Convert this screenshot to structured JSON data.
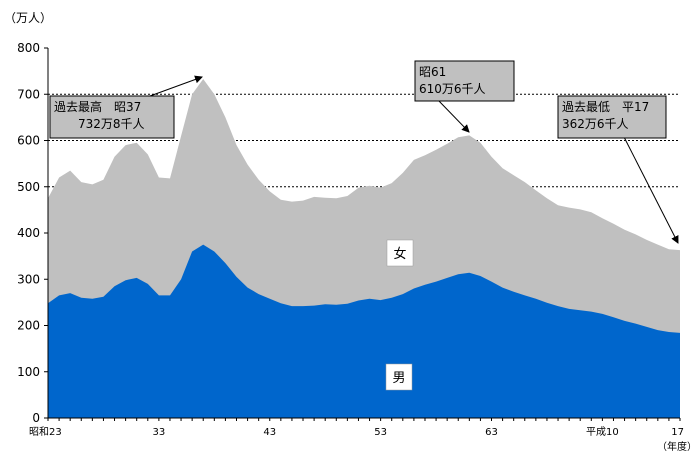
{
  "chart_data": {
    "type": "area",
    "stacked": true,
    "y_unit": "（万人）",
    "x_unit": "（年度）",
    "ylim": [
      0,
      800
    ],
    "yticks": [
      0,
      100,
      200,
      300,
      400,
      500,
      600,
      700,
      800
    ],
    "gridlines_y": [
      500,
      600,
      700
    ],
    "x_tick_labels": [
      {
        "label": "昭和23",
        "index": 0
      },
      {
        "label": "33",
        "index": 10
      },
      {
        "label": "43",
        "index": 20
      },
      {
        "label": "53",
        "index": 30
      },
      {
        "label": "63",
        "index": 40
      },
      {
        "label": "平成10",
        "index": 50
      },
      {
        "label": "17",
        "index": 57
      }
    ],
    "total": [
      475,
      520,
      535,
      510,
      505,
      515,
      565,
      590,
      595,
      570,
      520,
      518,
      610,
      700,
      733,
      700,
      650,
      590,
      548,
      515,
      490,
      472,
      468,
      470,
      478,
      476,
      475,
      480,
      498,
      502,
      498,
      508,
      530,
      558,
      568,
      580,
      593,
      607,
      611,
      595,
      565,
      540,
      525,
      510,
      492,
      475,
      460,
      455,
      451,
      445,
      432,
      420,
      407,
      397,
      385,
      375,
      365,
      363
    ],
    "series": [
      {
        "name": "男",
        "color": "#0066cc",
        "values": [
          248,
          265,
          270,
          260,
          258,
          262,
          285,
          298,
          303,
          290,
          265,
          265,
          300,
          360,
          375,
          360,
          335,
          305,
          282,
          268,
          258,
          248,
          242,
          242,
          243,
          246,
          245,
          247,
          254,
          258,
          255,
          260,
          268,
          280,
          288,
          295,
          303,
          311,
          314,
          307,
          295,
          282,
          273,
          265,
          258,
          249,
          242,
          236,
          233,
          230,
          225,
          218,
          210,
          204,
          197,
          190,
          186,
          184
        ]
      },
      {
        "name": "女",
        "color": "#c0c0c0"
      }
    ],
    "annotations": [
      {
        "lines": [
          "過去最高　昭37",
          "732万8千人"
        ],
        "index": 14,
        "value": 733
      },
      {
        "lines": [
          "昭61",
          "610万6千人"
        ],
        "index": 38,
        "value": 611
      },
      {
        "lines": [
          "過去最低　平17",
          "362万6千人"
        ],
        "index": 57,
        "value": 363
      }
    ]
  }
}
